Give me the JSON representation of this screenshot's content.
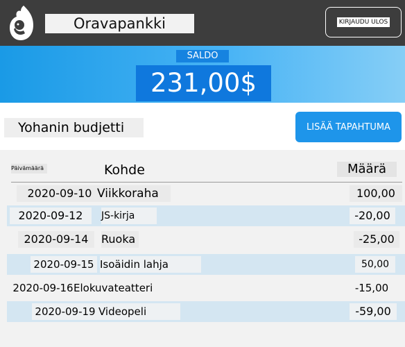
{
  "header": {
    "app_title": "Oravapankki",
    "logout_label": "KIRJAUDU ULOS",
    "logo_icon": "squirrel-icon"
  },
  "balance": {
    "label": "SALDO",
    "value": "231,00$"
  },
  "budget": {
    "title": "Yohanin budjetti",
    "add_label": "LISÄÄ TAPAHTUMA"
  },
  "table": {
    "headers": {
      "date": "Päivämäärä",
      "target": "Kohde",
      "amount": "Määrä"
    },
    "rows": [
      {
        "date": "2020-09-10",
        "target": "Viikkoraha",
        "amount": "100,00"
      },
      {
        "date": "2020-09-12",
        "target": "JS-kirja",
        "amount": "-20,00"
      },
      {
        "date": "2020-09-14",
        "target": "Ruoka",
        "amount": "-25,00"
      },
      {
        "date": "2020-09-15",
        "target": "Isoäidin lahja",
        "amount": "50,00"
      },
      {
        "date": "2020-09-16",
        "target": "Elokuvateatteri",
        "amount": "-15,00"
      },
      {
        "date": "2020-09-19",
        "target": "Videopeli",
        "amount": "-59,00"
      }
    ]
  },
  "colors": {
    "header_bg": "#3d3d3d",
    "accent": "#1e95ea",
    "row_alt": "#d4e6f2"
  }
}
